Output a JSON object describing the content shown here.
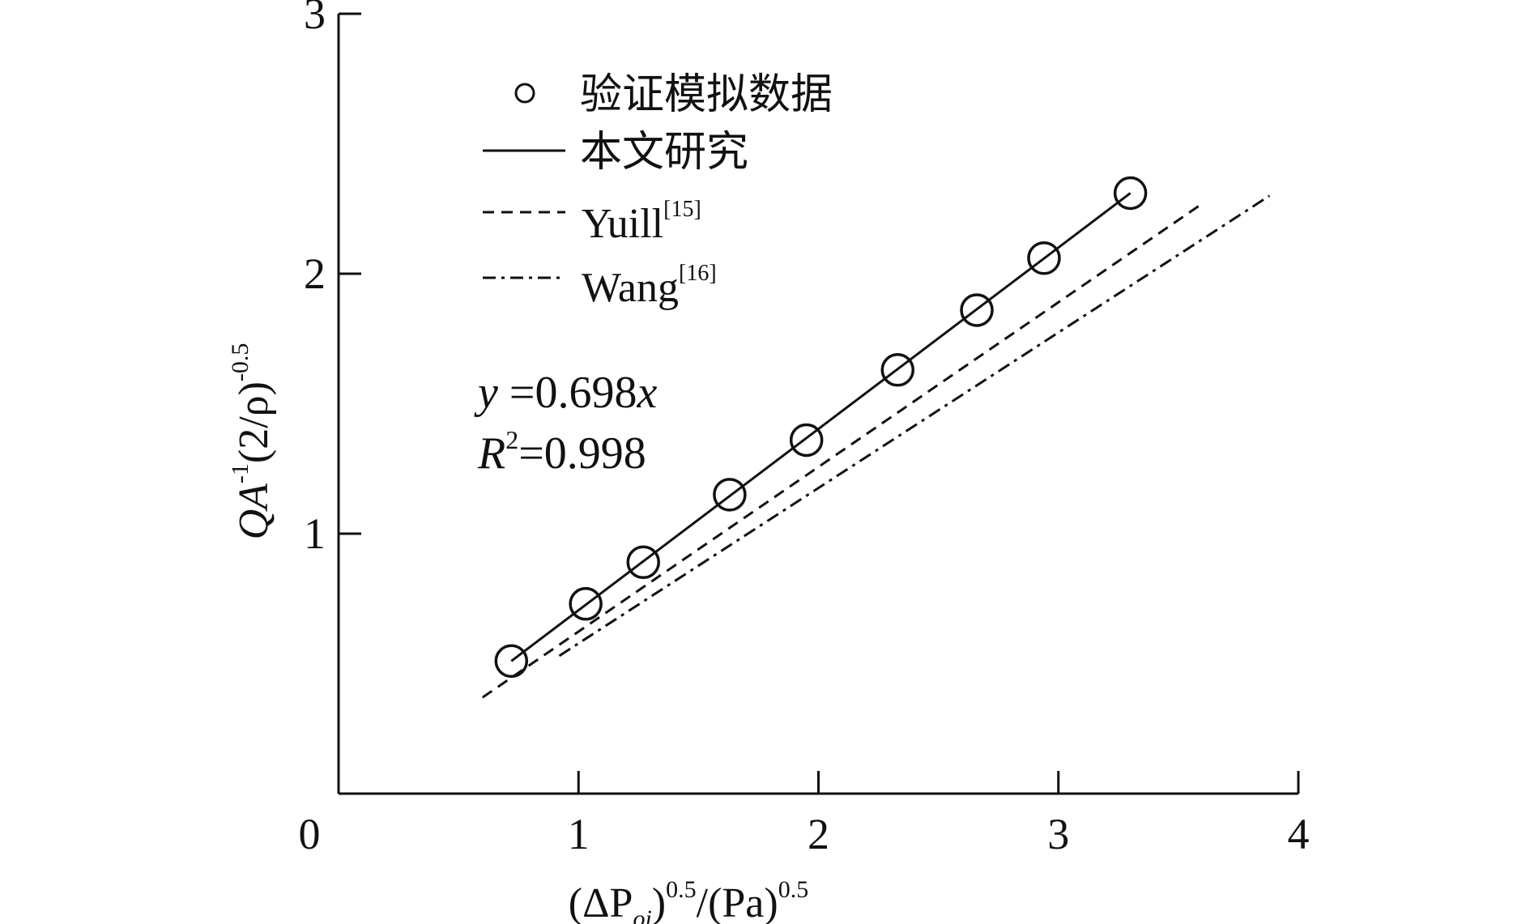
{
  "chart_data": {
    "type": "scatter",
    "xlabel": {
      "base": "(ΔP",
      "sub": "oi",
      "mid": ")",
      "sup1": "0.5",
      "rest": "/(Pa)",
      "sup2": "0.5"
    },
    "ylabel": {
      "q": "QA",
      "sup1": "-1",
      "mid": "(2/ρ)",
      "sup2": "-0.5"
    },
    "xlim": [
      0,
      4
    ],
    "ylim": [
      0,
      3
    ],
    "x_ticks": [
      "0",
      "1",
      "2",
      "3",
      "4"
    ],
    "y_ticks": [
      "1",
      "2",
      "3"
    ],
    "grid": false,
    "legend_position": "top-left",
    "series": [
      {
        "name": "验证模拟数据",
        "kind": "points",
        "marker": "open-circle",
        "x": [
          0.72,
          1.03,
          1.27,
          1.63,
          1.95,
          2.33,
          2.66,
          2.94,
          3.3
        ],
        "y": [
          0.51,
          0.73,
          0.89,
          1.15,
          1.36,
          1.63,
          1.86,
          2.06,
          2.31
        ]
      },
      {
        "name": "本文研究",
        "kind": "line",
        "style": "solid",
        "x": [
          0.72,
          3.3
        ],
        "y": [
          0.51,
          2.31
        ]
      },
      {
        "name": "Yuill",
        "name_sup": "[15]",
        "kind": "line",
        "style": "dashed",
        "x": [
          0.6,
          3.6
        ],
        "y": [
          0.37,
          2.27
        ]
      },
      {
        "name": "Wang",
        "name_sup": "[16]",
        "kind": "line",
        "style": "dashdot",
        "x": [
          0.92,
          3.88
        ],
        "y": [
          0.53,
          2.3
        ]
      }
    ],
    "annotations": {
      "equation": {
        "y": "y",
        "rest": " =0.698",
        "x": "x"
      },
      "r2": {
        "r": "R",
        "sup": "2",
        "rest": "=0.998"
      }
    },
    "colors": {
      "ink": "#111111",
      "background": "#ffffff"
    }
  }
}
